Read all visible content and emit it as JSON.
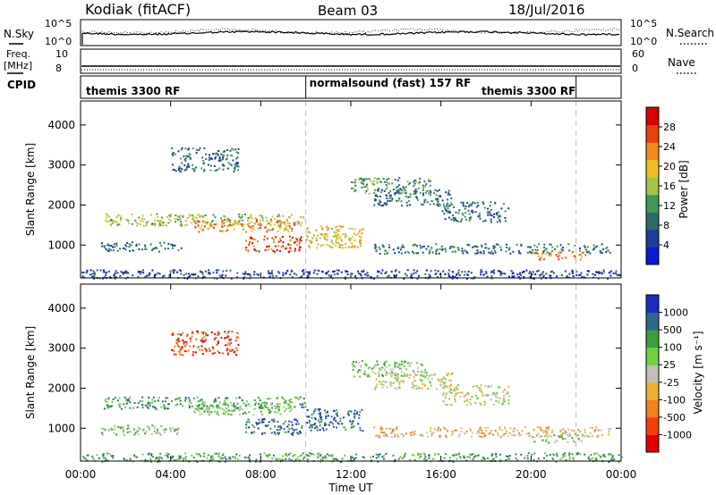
{
  "header": {
    "station": "Kodiak (fitACF)",
    "beam": "Beam 03",
    "date": "18/Jul/2016"
  },
  "side_labels": {
    "nsky": "N.Sky",
    "freq_line1": "Freq.",
    "freq_line2": "[MHz]",
    "cpid": "CPID",
    "nsearch": "N.Search",
    "nave": "Nave",
    "nsky_ticks": [
      "10^5",
      "10^0"
    ],
    "nsearch_ticks": [
      "10^5",
      "10^0"
    ],
    "freq_ticks": [
      "10",
      "8"
    ],
    "nave_ticks": [
      "60",
      "0"
    ]
  },
  "cpid_segments": [
    {
      "label": "themis 3300 RF",
      "start_hour": 0,
      "end_hour": 10
    },
    {
      "label": "normalsound (fast) 157 RF",
      "start_hour": 10,
      "end_hour": 22
    },
    {
      "label": "themis 3300 RF",
      "start_hour": 22,
      "end_hour": 24
    }
  ],
  "x_axis": {
    "label": "Time UT",
    "ticks": [
      "00:00",
      "04:00",
      "08:00",
      "12:00",
      "16:00",
      "20:00",
      "00:00"
    ],
    "range_hours": [
      0,
      24
    ]
  },
  "chart_data": [
    {
      "type": "heatmap",
      "title": "",
      "ylabel": "Slant Range [km]",
      "xlabel": "",
      "yticks": [
        "1000",
        "2000",
        "3000",
        "4000"
      ],
      "ylim": [
        180,
        4600
      ],
      "colorbar": {
        "label": "Power [dB]",
        "ticks": [
          "4",
          "8",
          "12",
          "16",
          "20",
          "24",
          "28"
        ],
        "range": [
          0,
          30
        ],
        "colors": [
          "#0a18d8",
          "#1e3c9c",
          "#2d6a6a",
          "#3f9a58",
          "#a6c44a",
          "#f0c020",
          "#f08a18",
          "#e84010",
          "#d80000"
        ]
      },
      "regions": [
        {
          "t": [
            1.0,
            10.0
          ],
          "r": [
            1500,
            1800
          ],
          "level": 14
        },
        {
          "t": [
            5.0,
            9.5
          ],
          "r": [
            1350,
            1650
          ],
          "level": 20
        },
        {
          "t": [
            7.3,
            9.8
          ],
          "r": [
            850,
            1250
          ],
          "level": 24
        },
        {
          "t": [
            10.0,
            12.5
          ],
          "r": [
            950,
            1500
          ],
          "level": 18
        },
        {
          "t": [
            12.0,
            15.5
          ],
          "r": [
            2300,
            2700
          ],
          "level": 13
        },
        {
          "t": [
            13.0,
            16.5
          ],
          "r": [
            2000,
            2400
          ],
          "level": 9
        },
        {
          "t": [
            16.0,
            19.0
          ],
          "r": [
            1600,
            2100
          ],
          "level": 8
        },
        {
          "t": [
            13.0,
            23.5
          ],
          "r": [
            800,
            1050
          ],
          "level": 9
        },
        {
          "t": [
            20.0,
            22.5
          ],
          "r": [
            650,
            850
          ],
          "level": 20
        },
        {
          "t": [
            4.0,
            7.0
          ],
          "r": [
            2850,
            3450
          ],
          "level": 8
        },
        {
          "t": [
            0.8,
            4.5
          ],
          "r": [
            850,
            1100
          ],
          "level": 9
        },
        {
          "t": [
            0.0,
            24.0
          ],
          "r": [
            180,
            400
          ],
          "level": 6
        }
      ]
    },
    {
      "type": "heatmap",
      "title": "",
      "ylabel": "Slant Range [km]",
      "xlabel": "Time UT",
      "yticks": [
        "1000",
        "2000",
        "3000",
        "4000"
      ],
      "ylim": [
        180,
        4600
      ],
      "colorbar": {
        "label": "Velocity [m s⁻¹]",
        "ticks": [
          "1000",
          "500",
          "100",
          "25",
          "-25",
          "-100",
          "-500",
          "-1000"
        ],
        "range": [
          -1000,
          1000
        ],
        "colors": [
          "#e00000",
          "#f04010",
          "#f08020",
          "#f0b030",
          "#c0c0b8",
          "#70d040",
          "#3c9e3c",
          "#2c6a8a",
          "#1c2cc0"
        ]
      },
      "regions": [
        {
          "t": [
            1.0,
            10.0
          ],
          "r": [
            1500,
            1800
          ],
          "level": 10
        },
        {
          "t": [
            5.0,
            9.5
          ],
          "r": [
            1350,
            1650
          ],
          "level": 5
        },
        {
          "t": [
            7.3,
            9.8
          ],
          "r": [
            850,
            1250
          ],
          "level": 150
        },
        {
          "t": [
            10.0,
            12.5
          ],
          "r": [
            950,
            1500
          ],
          "level": 120
        },
        {
          "t": [
            12.0,
            15.5
          ],
          "r": [
            2300,
            2700
          ],
          "level": 5
        },
        {
          "t": [
            13.0,
            16.5
          ],
          "r": [
            2000,
            2400
          ],
          "level": 0
        },
        {
          "t": [
            16.0,
            19.0
          ],
          "r": [
            1600,
            2100
          ],
          "level": 0
        },
        {
          "t": [
            13.0,
            23.5
          ],
          "r": [
            800,
            1050
          ],
          "level": -5
        },
        {
          "t": [
            20.0,
            22.5
          ],
          "r": [
            650,
            850
          ],
          "level": 5
        },
        {
          "t": [
            4.0,
            7.0
          ],
          "r": [
            2850,
            3450
          ],
          "level": -120
        },
        {
          "t": [
            0.8,
            4.5
          ],
          "r": [
            850,
            1100
          ],
          "level": 5
        },
        {
          "t": [
            0.0,
            24.0
          ],
          "r": [
            180,
            400
          ],
          "level": 30
        }
      ]
    }
  ]
}
